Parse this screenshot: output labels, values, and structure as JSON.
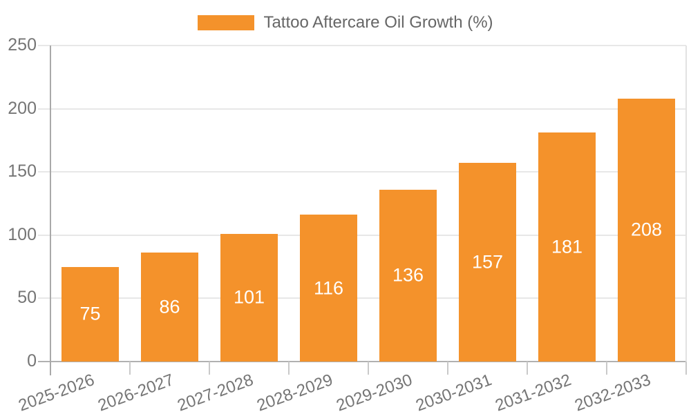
{
  "chart_data": {
    "type": "bar",
    "title": "Tattoo Aftercare Oil Growth (%)",
    "categories": [
      "2025-2026",
      "2026-2027",
      "2027-2028",
      "2028-2029",
      "2029-2030",
      "2030-2031",
      "2031-2032",
      "2032-2033"
    ],
    "values": [
      75,
      86,
      101,
      116,
      136,
      157,
      181,
      208
    ],
    "xlabel": "",
    "ylabel": "",
    "ylim": [
      0,
      250
    ],
    "yticks": [
      0,
      50,
      100,
      150,
      200,
      250
    ],
    "grid": true,
    "legend_position": "top",
    "bar_color": "#f4922b",
    "value_label_color": "#ffffff",
    "tick_label_color": "#757575",
    "legend_text_color": "#666666",
    "gridline_color": "#e7e7e7"
  }
}
